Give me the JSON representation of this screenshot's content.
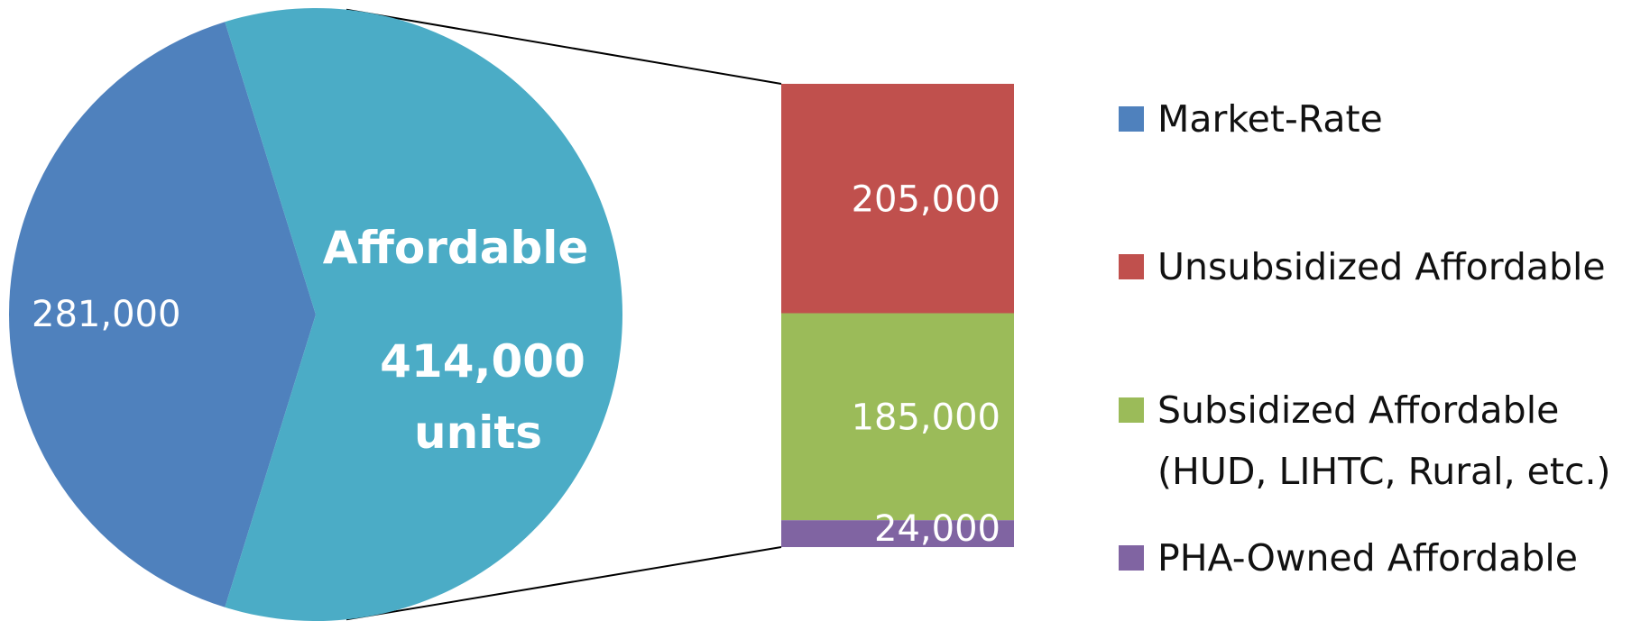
{
  "chart_data": {
    "type": "bar-of-pie",
    "pie": {
      "slices": [
        {
          "key": "market_rate",
          "value": 281000,
          "label": "281,000",
          "color": "#4F81BD"
        },
        {
          "key": "affordable",
          "value": 414000,
          "label_lines": [
            "Affordable",
            "414,000",
            "units"
          ],
          "color": "#4BACC6"
        }
      ]
    },
    "bar": {
      "segments": [
        {
          "key": "unsubsidized",
          "value": 205000,
          "label": "205,000",
          "color": "#C0504D"
        },
        {
          "key": "subsidized",
          "value": 185000,
          "label": "185,000",
          "color": "#9BBB59"
        },
        {
          "key": "pha_owned",
          "value": 24000,
          "label": "24,000",
          "color": "#8064A2"
        }
      ]
    },
    "legend": {
      "placement": "right",
      "entries": [
        {
          "lines": [
            "Market-Rate"
          ],
          "color": "#4F81BD"
        },
        {
          "lines": [
            "Unsubsidized Affordable"
          ],
          "color": "#C0504D"
        },
        {
          "lines": [
            "Subsidized Affordable",
            "(HUD, LIHTC, Rural, etc.)"
          ],
          "color": "#9BBB59"
        },
        {
          "lines": [
            "PHA-Owned Affordable"
          ],
          "color": "#8064A2"
        }
      ]
    }
  }
}
